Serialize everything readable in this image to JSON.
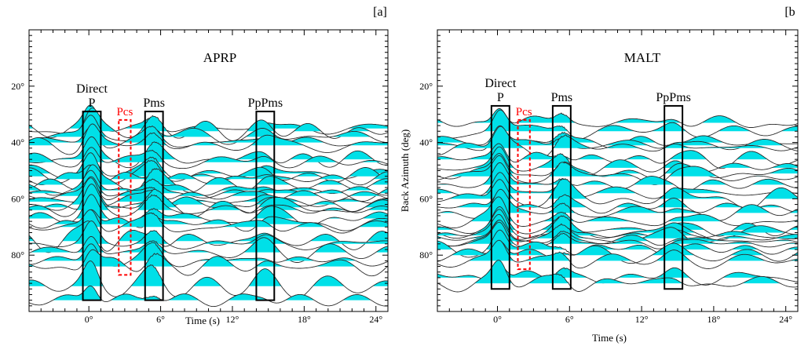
{
  "chart_data": [
    {
      "type": "line",
      "panel_label": "[a]",
      "station": "APRP",
      "xlabel": "Time (s)",
      "ylabel": "",
      "xlim": [
        -5,
        25
      ],
      "ylim": [
        100,
        0
      ],
      "x_ticks": [
        0,
        6,
        12,
        18,
        24
      ],
      "x_tick_labels": [
        "0°",
        "6°",
        "12°",
        "18°",
        "24°"
      ],
      "y_ticks": [
        20,
        40,
        60,
        80
      ],
      "y_tick_labels": [
        "20°",
        "40°",
        "60°",
        "80°"
      ],
      "trace_back_azimuths": [
        35,
        36,
        38,
        40,
        41,
        46,
        47,
        51,
        52,
        53,
        55,
        57,
        58,
        59,
        61,
        62,
        63,
        64,
        67,
        69,
        70,
        75,
        76,
        79,
        82,
        84,
        91,
        96
      ],
      "phase_windows": [
        {
          "label": "Direct\nP",
          "x": [
            -0.5,
            1.0
          ],
          "y": [
            29,
            96
          ],
          "color": "#000000",
          "dashed": false
        },
        {
          "label": "Pcs",
          "x": [
            2.5,
            3.5
          ],
          "y": [
            32,
            87
          ],
          "color": "#ff0000",
          "dashed": true
        },
        {
          "label": "Pms",
          "x": [
            4.7,
            6.2
          ],
          "y": [
            29,
            96
          ],
          "color": "#000000",
          "dashed": false
        },
        {
          "label": "PpPms",
          "x": [
            14.0,
            15.5
          ],
          "y": [
            29,
            96
          ],
          "color": "#000000",
          "dashed": false
        }
      ],
      "fill_color": "#00e0e8",
      "line_color": "#2b2b2b"
    },
    {
      "type": "line",
      "panel_label": "[b",
      "station": "MALT",
      "xlabel": "Time (s)",
      "ylabel": "Back Azimuth (deg)",
      "xlim": [
        -5,
        25
      ],
      "ylim": [
        100,
        0
      ],
      "x_ticks": [
        0,
        6,
        12,
        18,
        24
      ],
      "x_tick_labels": [
        "0°",
        "6°",
        "12°",
        "18°",
        "24°"
      ],
      "y_ticks": [
        20,
        40,
        60,
        80
      ],
      "y_tick_labels": [
        "20°",
        "40°",
        "60°",
        "80°"
      ],
      "trace_back_azimuths": [
        33,
        36,
        40,
        41,
        42,
        46,
        49,
        51,
        52,
        55,
        58,
        60,
        63,
        65,
        68,
        71,
        72,
        73,
        74,
        75,
        76,
        78,
        80,
        82,
        88,
        90
      ],
      "phase_windows": [
        {
          "label": "Direct\nP",
          "x": [
            -0.5,
            1.0
          ],
          "y": [
            27,
            92
          ],
          "color": "#000000",
          "dashed": false
        },
        {
          "label": "Pcs",
          "x": [
            1.7,
            2.7
          ],
          "y": [
            32,
            85
          ],
          "color": "#ff0000",
          "dashed": true
        },
        {
          "label": "Pms",
          "x": [
            4.6,
            6.1
          ],
          "y": [
            27,
            92
          ],
          "color": "#000000",
          "dashed": false
        },
        {
          "label": "PpPms",
          "x": [
            13.9,
            15.4
          ],
          "y": [
            27,
            92
          ],
          "color": "#000000",
          "dashed": false
        }
      ],
      "fill_color": "#00e0e8",
      "line_color": "#2b2b2b"
    }
  ]
}
